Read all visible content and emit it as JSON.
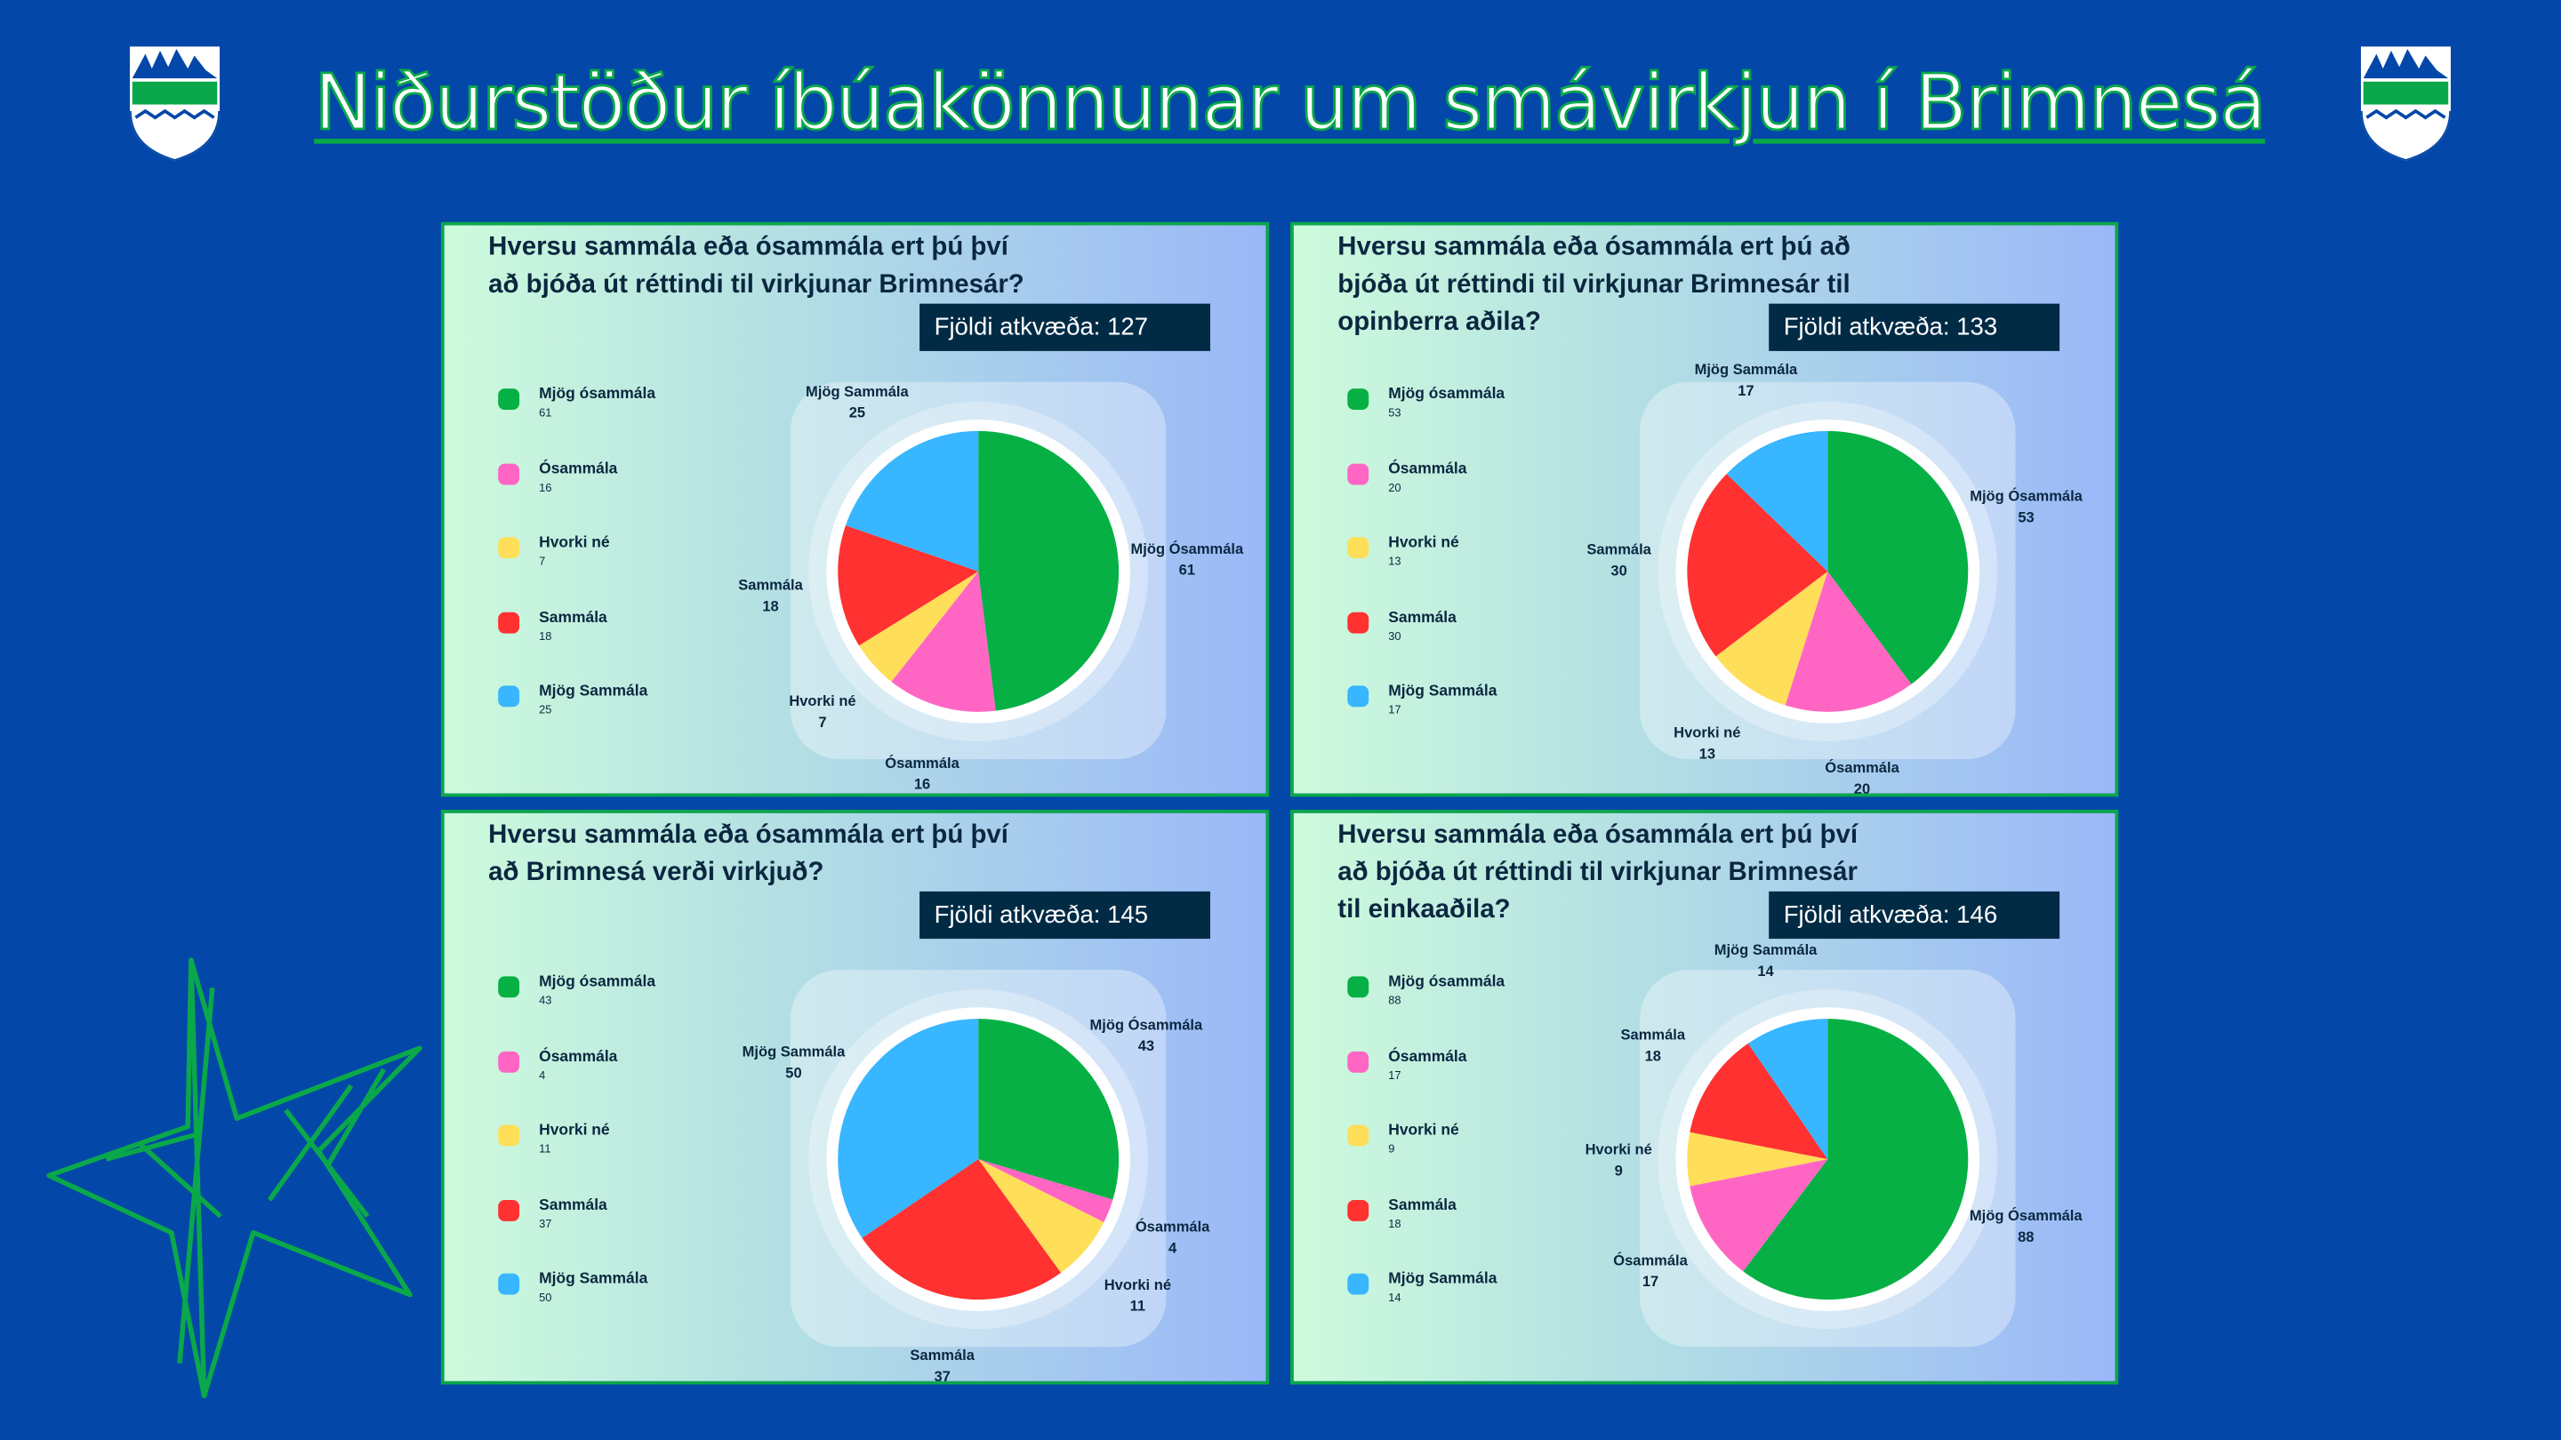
{
  "title": "Niðurstöður íbúakönnunar um smávirkjun í Brimnesá",
  "colors": {
    "background": "#0347a8",
    "accent": "#0aa84a",
    "categories": [
      "#07b044",
      "#ff66c4",
      "#ffde59",
      "#ff3131",
      "#38b6ff"
    ]
  },
  "panels": [
    {
      "question": "Hversu sammála eða ósammála ert þú því að bjóða út réttindi til virkjunar Brimnesár?",
      "count_label": "Fjöldi atkvæða: 127",
      "legend": [
        {
          "label": "Mjög ósammála",
          "value": "61"
        },
        {
          "label": "Ósammála",
          "value": "16"
        },
        {
          "label": "Hvorki né",
          "value": "7"
        },
        {
          "label": "Sammála",
          "value": "18"
        },
        {
          "label": "Mjög Sammála",
          "value": "25"
        }
      ],
      "chart_data": {
        "type": "pie",
        "categories": [
          "Mjög Ósammála",
          "Ósammála",
          "Hvorki né",
          "Sammála",
          "Mjög Sammála"
        ],
        "values": [
          61,
          16,
          7,
          18,
          25
        ]
      }
    },
    {
      "question": "Hversu sammála eða ósammála ert þú að bjóða út réttindi til virkjunar Brimnesár til opinberra aðila?",
      "count_label": "Fjöldi atkvæða: 133",
      "legend": [
        {
          "label": "Mjög ósammála",
          "value": "53"
        },
        {
          "label": "Ósammála",
          "value": "20"
        },
        {
          "label": "Hvorki né",
          "value": "13"
        },
        {
          "label": "Sammála",
          "value": "30"
        },
        {
          "label": "Mjög Sammála",
          "value": "17"
        }
      ],
      "chart_data": {
        "type": "pie",
        "categories": [
          "Mjög Ósammála",
          "Ósammála",
          "Hvorki né",
          "Sammála",
          "Mjög Sammála"
        ],
        "values": [
          53,
          20,
          13,
          30,
          17
        ]
      }
    },
    {
      "question": "Hversu sammála eða ósammála ert þú því að Brimnesá verði virkjuð?",
      "count_label": "Fjöldi atkvæða: 145",
      "legend": [
        {
          "label": "Mjög ósammála",
          "value": "43"
        },
        {
          "label": "Ósammála",
          "value": "4"
        },
        {
          "label": "Hvorki né",
          "value": "11"
        },
        {
          "label": "Sammála",
          "value": "37"
        },
        {
          "label": "Mjög Sammála",
          "value": "50"
        }
      ],
      "chart_data": {
        "type": "pie",
        "categories": [
          "Mjög Ósammála",
          "Ósammála",
          "Hvorki né",
          "Sammála",
          "Mjög Sammála"
        ],
        "values": [
          43,
          4,
          11,
          37,
          50
        ]
      }
    },
    {
      "question": "Hversu sammála eða ósammála ert þú því að bjóða út réttindi til virkjunar Brimnesár til einkaaðila?",
      "count_label": "Fjöldi atkvæða: 146",
      "legend": [
        {
          "label": "Mjög ósammála",
          "value": "88"
        },
        {
          "label": "Ósammála",
          "value": "17"
        },
        {
          "label": "Hvorki né",
          "value": "9"
        },
        {
          "label": "Sammála",
          "value": "18"
        },
        {
          "label": "Mjög Sammála",
          "value": "14"
        }
      ],
      "chart_data": {
        "type": "pie",
        "categories": [
          "Mjög Ósammála",
          "Ósammála",
          "Hvorki né",
          "Sammála",
          "Mjög Sammála"
        ],
        "values": [
          88,
          17,
          9,
          18,
          14
        ]
      }
    }
  ]
}
